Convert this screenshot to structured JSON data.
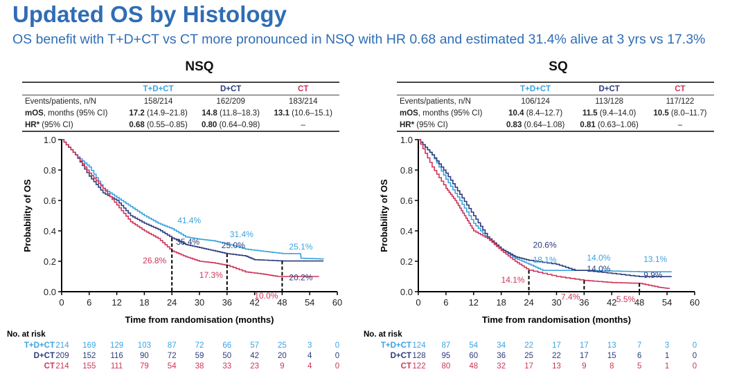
{
  "header": {
    "title": "Updated OS by Histology",
    "subtitle": "OS benefit with T+D+CT vs CT more pronounced in NSQ with HR 0.68 and estimated 31.4% alive at 3 yrs vs 17.3%"
  },
  "colors": {
    "TDCT": "#3aa3e0",
    "DCT": "#2b3b7c",
    "CT": "#cf3459",
    "title": "#2f6db5"
  },
  "tables": [
    {
      "panel": "NSQ",
      "columns": [
        "T+D+CT",
        "D+CT",
        "CT"
      ],
      "rows": [
        {
          "label_bold": "",
          "label": "Events/patients, n/N",
          "cells": [
            [
              "",
              "158/214"
            ],
            [
              "",
              "162/209"
            ],
            [
              "",
              "183/214"
            ]
          ]
        },
        {
          "label_bold": "mOS",
          "label": ", months (95% CI)",
          "cells": [
            [
              "17.2",
              " (14.9–21.8)"
            ],
            [
              "14.8",
              " (11.8–18.3)"
            ],
            [
              "13.1",
              " (10.6–15.1)"
            ]
          ]
        },
        {
          "label_bold": "HR*",
          "label": " (95% CI)",
          "cells": [
            [
              "0.68",
              " (0.55–0.85)"
            ],
            [
              "0.80",
              " (0.64–0.98)"
            ],
            [
              "",
              "–"
            ]
          ]
        }
      ]
    },
    {
      "panel": "SQ",
      "columns": [
        "T+D+CT",
        "D+CT",
        "CT"
      ],
      "rows": [
        {
          "label_bold": "",
          "label": "Events/patients, n/N",
          "cells": [
            [
              "",
              "106/124"
            ],
            [
              "",
              "113/128"
            ],
            [
              "",
              "117/122"
            ]
          ]
        },
        {
          "label_bold": "mOS",
          "label": ", months (95% CI)",
          "cells": [
            [
              "10.4",
              " (8.4–12.7)"
            ],
            [
              "11.5",
              " (9.4–14.0)"
            ],
            [
              "10.5",
              " (8.0–11.7)"
            ]
          ]
        },
        {
          "label_bold": "HR*",
          "label": " (95% CI)",
          "cells": [
            [
              "0.83",
              " (0.64–1.08)"
            ],
            [
              "0.81",
              " (0.63–1.06)"
            ],
            [
              "",
              "–"
            ]
          ]
        }
      ]
    }
  ],
  "chart_data": [
    {
      "type": "line",
      "title": "NSQ",
      "xlabel": "Time from randomisation (months)",
      "ylabel": "Probability of OS",
      "xlim": [
        0,
        60
      ],
      "ylim": [
        0,
        1
      ],
      "xticks": [
        "0",
        "6",
        "12",
        "18",
        "24",
        "30",
        "36",
        "42",
        "48",
        "54",
        "60"
      ],
      "yticks": [
        "0.0",
        "0.2",
        "0.4",
        "0.6",
        "0.8",
        "1.0"
      ],
      "reference_months": [
        24,
        36,
        48
      ],
      "series": [
        {
          "name": "T+D+CT",
          "key": "TDCT",
          "x": [
            0,
            3,
            6,
            9,
            12,
            15,
            18,
            21,
            24,
            27,
            30,
            33,
            36,
            40,
            44,
            48,
            52,
            52.1,
            57
          ],
          "y": [
            1,
            0.9,
            0.82,
            0.68,
            0.62,
            0.56,
            0.5,
            0.45,
            0.414,
            0.36,
            0.345,
            0.335,
            0.314,
            0.28,
            0.265,
            0.251,
            0.25,
            0.22,
            0.215
          ]
        },
        {
          "name": "D+CT",
          "key": "DCT",
          "x": [
            0,
            3,
            6,
            9,
            12,
            15,
            18,
            21,
            24,
            27,
            30,
            33,
            36,
            40,
            42,
            48,
            57
          ],
          "y": [
            1,
            0.9,
            0.76,
            0.65,
            0.6,
            0.5,
            0.45,
            0.41,
            0.354,
            0.31,
            0.29,
            0.27,
            0.25,
            0.235,
            0.21,
            0.202,
            0.202
          ]
        },
        {
          "name": "CT",
          "key": "CT",
          "x": [
            0,
            3,
            6,
            9,
            12,
            15,
            18,
            21,
            24,
            27,
            30,
            33,
            36,
            40,
            44,
            47,
            56
          ],
          "y": [
            1,
            0.9,
            0.78,
            0.68,
            0.57,
            0.46,
            0.4,
            0.35,
            0.268,
            0.23,
            0.2,
            0.19,
            0.173,
            0.13,
            0.115,
            0.1,
            0.1
          ]
        }
      ],
      "annotations": [
        {
          "series": "TDCT",
          "month": 24,
          "text": "41.4%"
        },
        {
          "series": "DCT",
          "month": 24,
          "text": "35.4%"
        },
        {
          "series": "CT",
          "month": 24,
          "text": "26.8%"
        },
        {
          "series": "TDCT",
          "month": 36,
          "text": "31.4%"
        },
        {
          "series": "DCT",
          "month": 36,
          "text": "25.0%"
        },
        {
          "series": "CT",
          "month": 36,
          "text": "17.3%"
        },
        {
          "series": "TDCT",
          "month": 48,
          "text": "25.1%"
        },
        {
          "series": "DCT",
          "month": 48,
          "text": "20.2%"
        },
        {
          "series": "CT",
          "month": 48,
          "text": "10.0%"
        }
      ],
      "at_risk": {
        "title": "No. at risk",
        "rows": [
          {
            "name": "T+D+CT",
            "key": "TDCT",
            "values": [
              "214",
              "169",
              "129",
              "103",
              "87",
              "72",
              "66",
              "57",
              "25",
              "3",
              "0"
            ]
          },
          {
            "name": "D+CT",
            "key": "DCT",
            "values": [
              "209",
              "152",
              "116",
              "90",
              "72",
              "59",
              "50",
              "42",
              "20",
              "4",
              "0"
            ]
          },
          {
            "name": "CT",
            "key": "CT",
            "values": [
              "214",
              "155",
              "111",
              "79",
              "54",
              "38",
              "33",
              "23",
              "9",
              "4",
              "0"
            ]
          }
        ]
      }
    },
    {
      "type": "line",
      "title": "SQ",
      "xlabel": "Time from randomisation (months)",
      "ylabel": "Probability of OS",
      "xlim": [
        0,
        60
      ],
      "ylim": [
        0,
        1
      ],
      "xticks": [
        "0",
        "6",
        "12",
        "18",
        "24",
        "30",
        "36",
        "42",
        "48",
        "54",
        "60"
      ],
      "yticks": [
        "0.0",
        "0.2",
        "0.4",
        "0.6",
        "0.8",
        "1.0"
      ],
      "reference_months": [
        24,
        36,
        48
      ],
      "series": [
        {
          "name": "T+D+CT",
          "key": "TDCT",
          "x": [
            0,
            3,
            6,
            9,
            12,
            15,
            18,
            21,
            24,
            27,
            30,
            36,
            48,
            55
          ],
          "y": [
            1,
            0.9,
            0.74,
            0.6,
            0.45,
            0.35,
            0.28,
            0.22,
            0.181,
            0.14,
            0.14,
            0.14,
            0.131,
            0.131
          ]
        },
        {
          "name": "D+CT",
          "key": "DCT",
          "x": [
            0,
            3,
            6,
            9,
            12,
            15,
            18,
            21,
            24,
            30,
            34,
            36,
            42,
            48,
            55
          ],
          "y": [
            1,
            0.9,
            0.78,
            0.64,
            0.5,
            0.36,
            0.28,
            0.23,
            0.206,
            0.18,
            0.14,
            0.14,
            0.12,
            0.099,
            0.099
          ]
        },
        {
          "name": "CT",
          "key": "CT",
          "x": [
            0,
            3,
            6,
            8,
            10,
            12,
            15,
            18,
            21,
            24,
            30,
            36,
            42,
            48,
            52,
            54.5
          ],
          "y": [
            1,
            0.82,
            0.68,
            0.6,
            0.5,
            0.4,
            0.35,
            0.27,
            0.2,
            0.141,
            0.1,
            0.074,
            0.06,
            0.055,
            0.03,
            0.02
          ]
        }
      ],
      "annotations": [
        {
          "series": "DCT",
          "month": 24,
          "text": "20.6%"
        },
        {
          "series": "TDCT",
          "month": 24,
          "text": "18.1%"
        },
        {
          "series": "CT",
          "month": 24,
          "text": "14.1%"
        },
        {
          "series": "TDCT",
          "month": 36,
          "text": "14.0%"
        },
        {
          "series": "DCT",
          "month": 36,
          "text": "14.0%"
        },
        {
          "series": "CT",
          "month": 36,
          "text": "7.4%"
        },
        {
          "series": "TDCT",
          "month": 48,
          "text": "13.1%"
        },
        {
          "series": "DCT",
          "month": 48,
          "text": "9.9%"
        },
        {
          "series": "CT",
          "month": 48,
          "text": "5.5%"
        }
      ],
      "at_risk": {
        "title": "No. at risk",
        "rows": [
          {
            "name": "T+D+CT",
            "key": "TDCT",
            "values": [
              "124",
              "87",
              "54",
              "34",
              "22",
              "17",
              "17",
              "13",
              "7",
              "3",
              "0"
            ]
          },
          {
            "name": "D+CT",
            "key": "DCT",
            "values": [
              "128",
              "95",
              "60",
              "36",
              "25",
              "22",
              "17",
              "15",
              "6",
              "1",
              "0"
            ]
          },
          {
            "name": "CT",
            "key": "CT",
            "values": [
              "122",
              "80",
              "48",
              "32",
              "17",
              "13",
              "9",
              "8",
              "5",
              "1",
              "0"
            ]
          }
        ]
      }
    }
  ]
}
